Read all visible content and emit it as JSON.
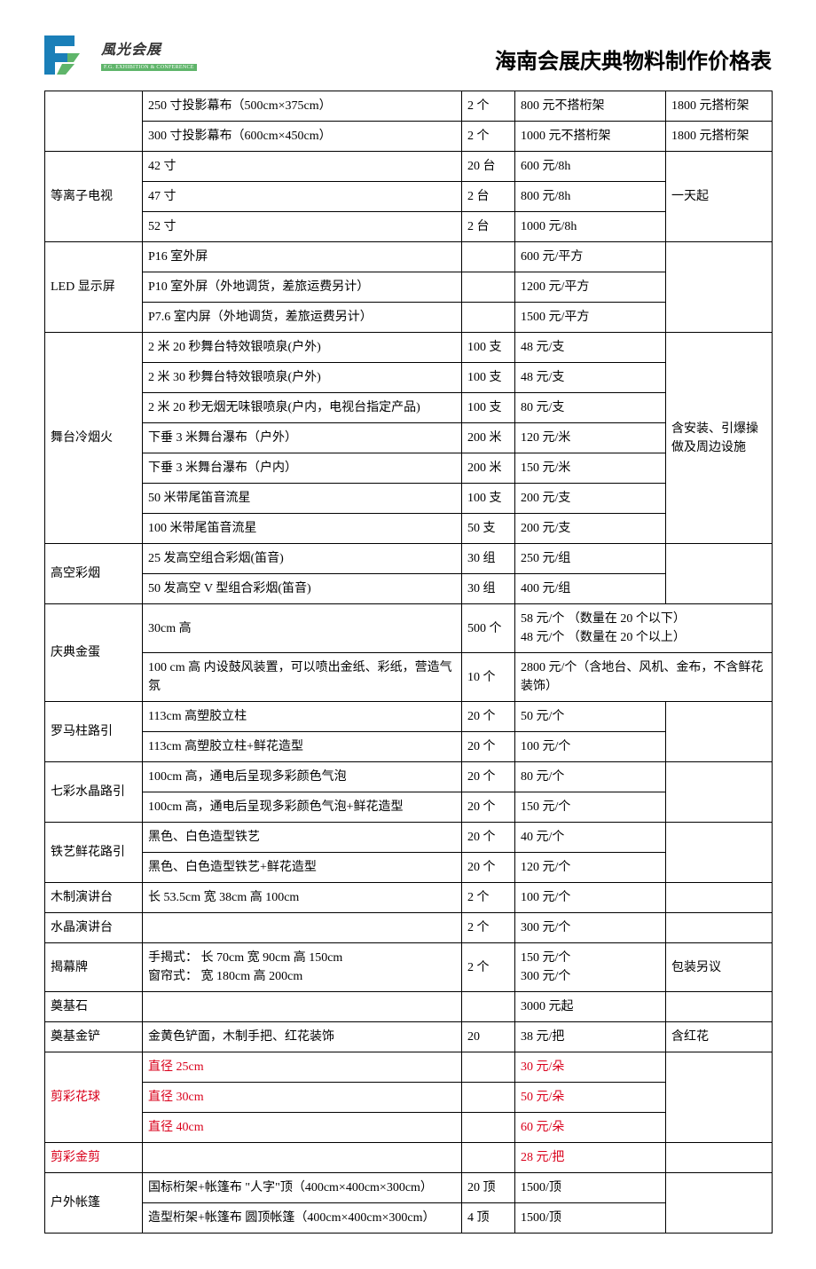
{
  "header": {
    "logo_cn": "風光会展",
    "logo_en": "F.G. EXHIBITION & CONFERENCE",
    "title": "海南会展庆典物料制作价格表"
  },
  "logo_colors": {
    "blue": "#1a7fb8",
    "green": "#5fb56a"
  },
  "rows": [
    {
      "c1": "",
      "c2": "250 寸投影幕布（500cm×375cm）",
      "c3": "2 个",
      "c4": "800 元不搭桁架",
      "c5": "1800 元搭桁架",
      "c1_rowspan": 2
    },
    {
      "c2": "300 寸投影幕布（600cm×450cm）",
      "c3": "2 个",
      "c4": "1000 元不搭桁架",
      "c5": "1800 元搭桁架"
    },
    {
      "c1": "等离子电视",
      "c1_rowspan": 3,
      "c2": "42 寸",
      "c3": "20 台",
      "c4": "600 元/8h",
      "c5": "一天起",
      "c5_rowspan": 3
    },
    {
      "c2": "47 寸",
      "c3": "2 台",
      "c4": "800 元/8h"
    },
    {
      "c2": "52 寸",
      "c3": "2 台",
      "c4": "1000 元/8h"
    },
    {
      "c1": "LED 显示屏",
      "c1_rowspan": 3,
      "c2": "P16 室外屏",
      "c3": "",
      "c4": "600 元/平方",
      "c5": "",
      "c5_rowspan": 3
    },
    {
      "c2": "P10 室外屏（外地调货，差旅运费另计）",
      "c3": "",
      "c4": "1200 元/平方"
    },
    {
      "c2": "P7.6 室内屏（外地调货，差旅运费另计）",
      "c3": "",
      "c4": "1500 元/平方"
    },
    {
      "c1": "舞台冷烟火",
      "c1_rowspan": 7,
      "c2": "2 米 20 秒舞台特效银喷泉(户外)",
      "c3": "100 支",
      "c4": "48 元/支",
      "c5": "含安装、引爆操做及周边设施",
      "c5_rowspan": 7
    },
    {
      "c2": "2 米 30 秒舞台特效银喷泉(户外)",
      "c3": "100 支",
      "c4": "48 元/支"
    },
    {
      "c2": "2 米 20 秒无烟无味银喷泉(户内，电视台指定产品)",
      "c3": "100 支",
      "c4": "80 元/支"
    },
    {
      "c2": "下垂 3 米舞台瀑布（户外）",
      "c3": "200 米",
      "c4": "120 元/米"
    },
    {
      "c2": "下垂 3 米舞台瀑布（户内）",
      "c3": "200 米",
      "c4": "150 元/米"
    },
    {
      "c2": "50 米带尾笛音流星",
      "c3": "100 支",
      "c4": "200 元/支"
    },
    {
      "c2": "100 米带尾笛音流星",
      "c3": "50 支",
      "c4": "200 元/支"
    },
    {
      "c1": "高空彩烟",
      "c1_rowspan": 2,
      "c2": "25 发高空组合彩烟(笛音)",
      "c3": "30 组",
      "c4": "250 元/组",
      "c5": "",
      "c5_rowspan": 2
    },
    {
      "c2": "50 发高空 V 型组合彩烟(笛音)",
      "c3": "30 组",
      "c4": "400 元/组"
    },
    {
      "c1": "庆典金蛋",
      "c1_rowspan": 2,
      "c2": "30cm 高",
      "c3": "500 个",
      "c4": "58 元/个 （数量在 20 个以下）<br>48 元/个 （数量在 20 个以上）",
      "c4_colspan": 2
    },
    {
      "c2": "100 cm 高 内设鼓风装置，可以喷出金纸、彩纸，营造气氛",
      "c3": "10 个",
      "c4": "2800 元/个（含地台、风机、金布，不含鲜花装饰）",
      "c4_colspan": 2
    },
    {
      "c1": "罗马柱路引",
      "c1_rowspan": 2,
      "c2": "113cm 高塑胶立柱",
      "c3": "20 个",
      "c4": "50 元/个",
      "c5": "",
      "c5_rowspan": 2
    },
    {
      "c2": "113cm 高塑胶立柱+鲜花造型",
      "c3": "20 个",
      "c4": "100 元/个"
    },
    {
      "c1": "七彩水晶路引",
      "c1_rowspan": 2,
      "c2": "100cm 高，通电后呈现多彩颜色气泡",
      "c3": "20 个",
      "c4": "80 元/个",
      "c5": "",
      "c5_rowspan": 2
    },
    {
      "c2": "100cm 高，通电后呈现多彩颜色气泡+鲜花造型",
      "c3": "20 个",
      "c4": "150 元/个"
    },
    {
      "c1": "铁艺鲜花路引",
      "c1_rowspan": 2,
      "c2": "黑色、白色造型铁艺",
      "c3": "20 个",
      "c4": "40 元/个",
      "c5": "",
      "c5_rowspan": 2
    },
    {
      "c2": "黑色、白色造型铁艺+鲜花造型",
      "c3": "20 个",
      "c4": "120 元/个"
    },
    {
      "c1": "木制演讲台",
      "c2": "长 53.5cm 宽 38cm 高 100cm",
      "c3": "2 个",
      "c4": "100 元/个",
      "c5": ""
    },
    {
      "c1": "水晶演讲台",
      "c2": "",
      "c3": "2 个",
      "c4": "300 元/个",
      "c5": ""
    },
    {
      "c1": "揭幕牌",
      "c2": "手揭式： 长 70cm 宽 90cm 高 150cm<br>窗帘式： 宽 180cm 高 200cm",
      "c3": "2 个",
      "c4": "150 元/个<br>300 元/个",
      "c5": "包装另议"
    },
    {
      "c1": "奠基石",
      "c2": "",
      "c3": "",
      "c4": "3000 元起",
      "c5": ""
    },
    {
      "c1": "奠基金铲",
      "c2": "金黄色铲面，木制手把、红花装饰",
      "c3": "20",
      "c4": "38 元/把",
      "c5": "含红花"
    },
    {
      "c1": "剪彩花球",
      "c1_rowspan": 3,
      "c1_red": true,
      "c2": "直径 25cm",
      "c2_red": true,
      "c3": "",
      "c4": "30 元/朵",
      "c4_red": true,
      "c5": "",
      "c5_rowspan": 3
    },
    {
      "c2": "直径 30cm",
      "c2_red": true,
      "c3": "",
      "c4": "50 元/朵",
      "c4_red": true
    },
    {
      "c2": "直径 40cm",
      "c2_red": true,
      "c3": "",
      "c4": "60 元/朵",
      "c4_red": true
    },
    {
      "c1": "剪彩金剪",
      "c1_red": true,
      "c2": "",
      "c3": "",
      "c4": "28 元/把",
      "c4_red": true,
      "c5": ""
    },
    {
      "c1": "户外帐篷",
      "c1_rowspan": 2,
      "c2": "国标桁架+帐篷布 \"人字\"顶（400cm×400cm×300cm）",
      "c3": "20 顶",
      "c4": "1500/顶",
      "c5": "",
      "c5_rowspan": 2
    },
    {
      "c2": "造型桁架+帐篷布 圆顶帐篷（400cm×400cm×300cm）",
      "c3": "4 顶",
      "c4": "1500/顶"
    }
  ]
}
